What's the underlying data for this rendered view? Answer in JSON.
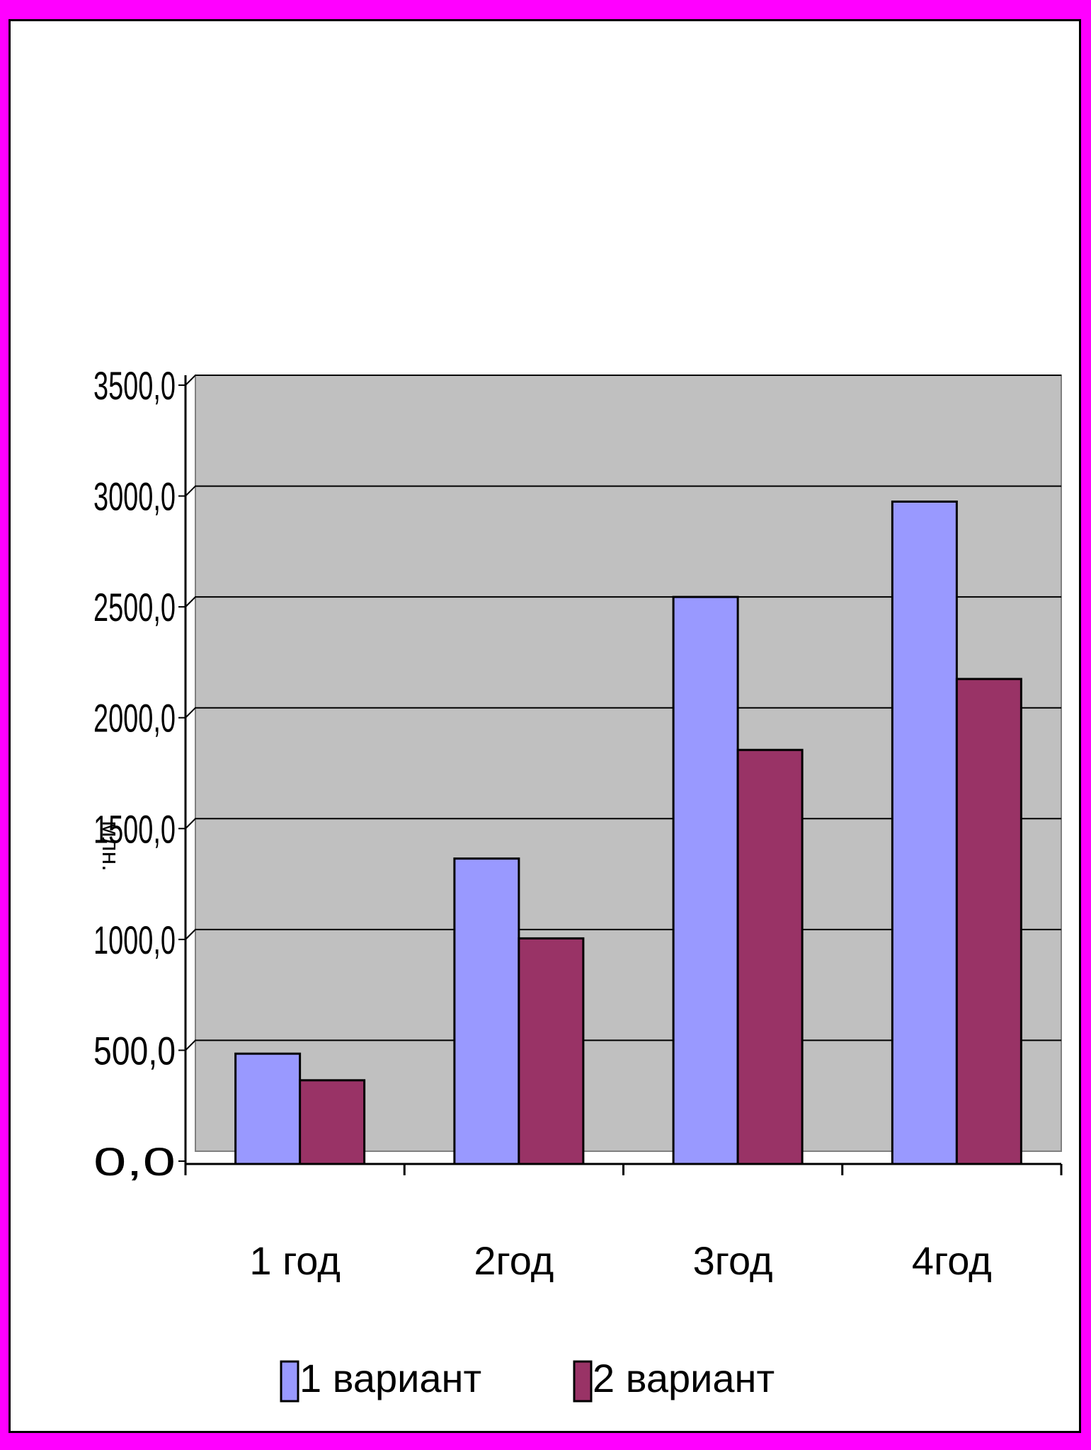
{
  "chart_data": {
    "type": "bar",
    "title": "",
    "xlabel": "",
    "ylabel": "млн.",
    "categories": [
      "1 год",
      "2год",
      "3год",
      "4год"
    ],
    "series": [
      {
        "name": "1 вариант",
        "values": [
          440,
          1320,
          2500,
          2930
        ]
      },
      {
        "name": "2 вариант",
        "values": [
          320,
          960,
          1810,
          2130
        ]
      }
    ],
    "ylim": [
      0,
      3500
    ],
    "yticks": [
      "0,0",
      "500,0",
      "1000,0",
      "1500,0",
      "2000,0",
      "2500,0",
      "3000,0",
      "3500,0"
    ],
    "grid": true,
    "legend": "bottom",
    "colors": {
      "series": [
        "#9999ff",
        "#993366"
      ],
      "plot_background": "#c0c0c0",
      "outer_border": "#ff00ff"
    }
  }
}
